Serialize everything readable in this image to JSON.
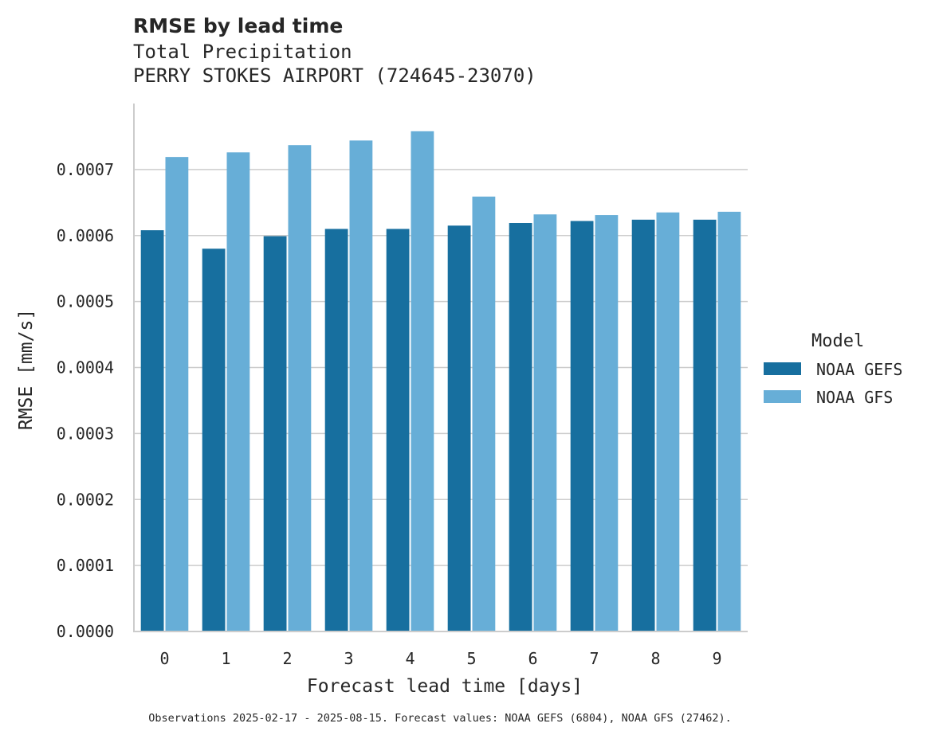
{
  "chart_data": {
    "type": "bar",
    "title": "RMSE by lead time",
    "subtitle_lines": [
      "Total Precipitation",
      "PERRY STOKES AIRPORT (724645-23070)"
    ],
    "xlabel": "Forecast lead time [days]",
    "ylabel": "RMSE [mm/s]",
    "categories": [
      "0",
      "1",
      "2",
      "3",
      "4",
      "5",
      "6",
      "7",
      "8",
      "9"
    ],
    "ylim": [
      0,
      0.0008
    ],
    "yticks": [
      0,
      0.0001,
      0.0002,
      0.0003,
      0.0004,
      0.0005,
      0.0006,
      0.0007
    ],
    "ytick_labels": [
      "0.0000",
      "0.0001",
      "0.0002",
      "0.0003",
      "0.0004",
      "0.0005",
      "0.0006",
      "0.0007"
    ],
    "grid": "y",
    "legend": {
      "title": "Model",
      "position": "right"
    },
    "series": [
      {
        "name": "NOAA GEFS",
        "color": "#176f9f",
        "values": [
          0.000608,
          0.00058,
          0.000599,
          0.00061,
          0.00061,
          0.000615,
          0.000619,
          0.000622,
          0.000624,
          0.000624
        ]
      },
      {
        "name": "NOAA GFS",
        "color": "#67aed7",
        "values": [
          0.000719,
          0.000726,
          0.000737,
          0.000744,
          0.000758,
          0.000659,
          0.000632,
          0.000631,
          0.000635,
          0.000636
        ]
      }
    ],
    "footnote": "Observations 2025-02-17 - 2025-08-15. Forecast values: NOAA GEFS (6804), NOAA GFS (27462)."
  }
}
